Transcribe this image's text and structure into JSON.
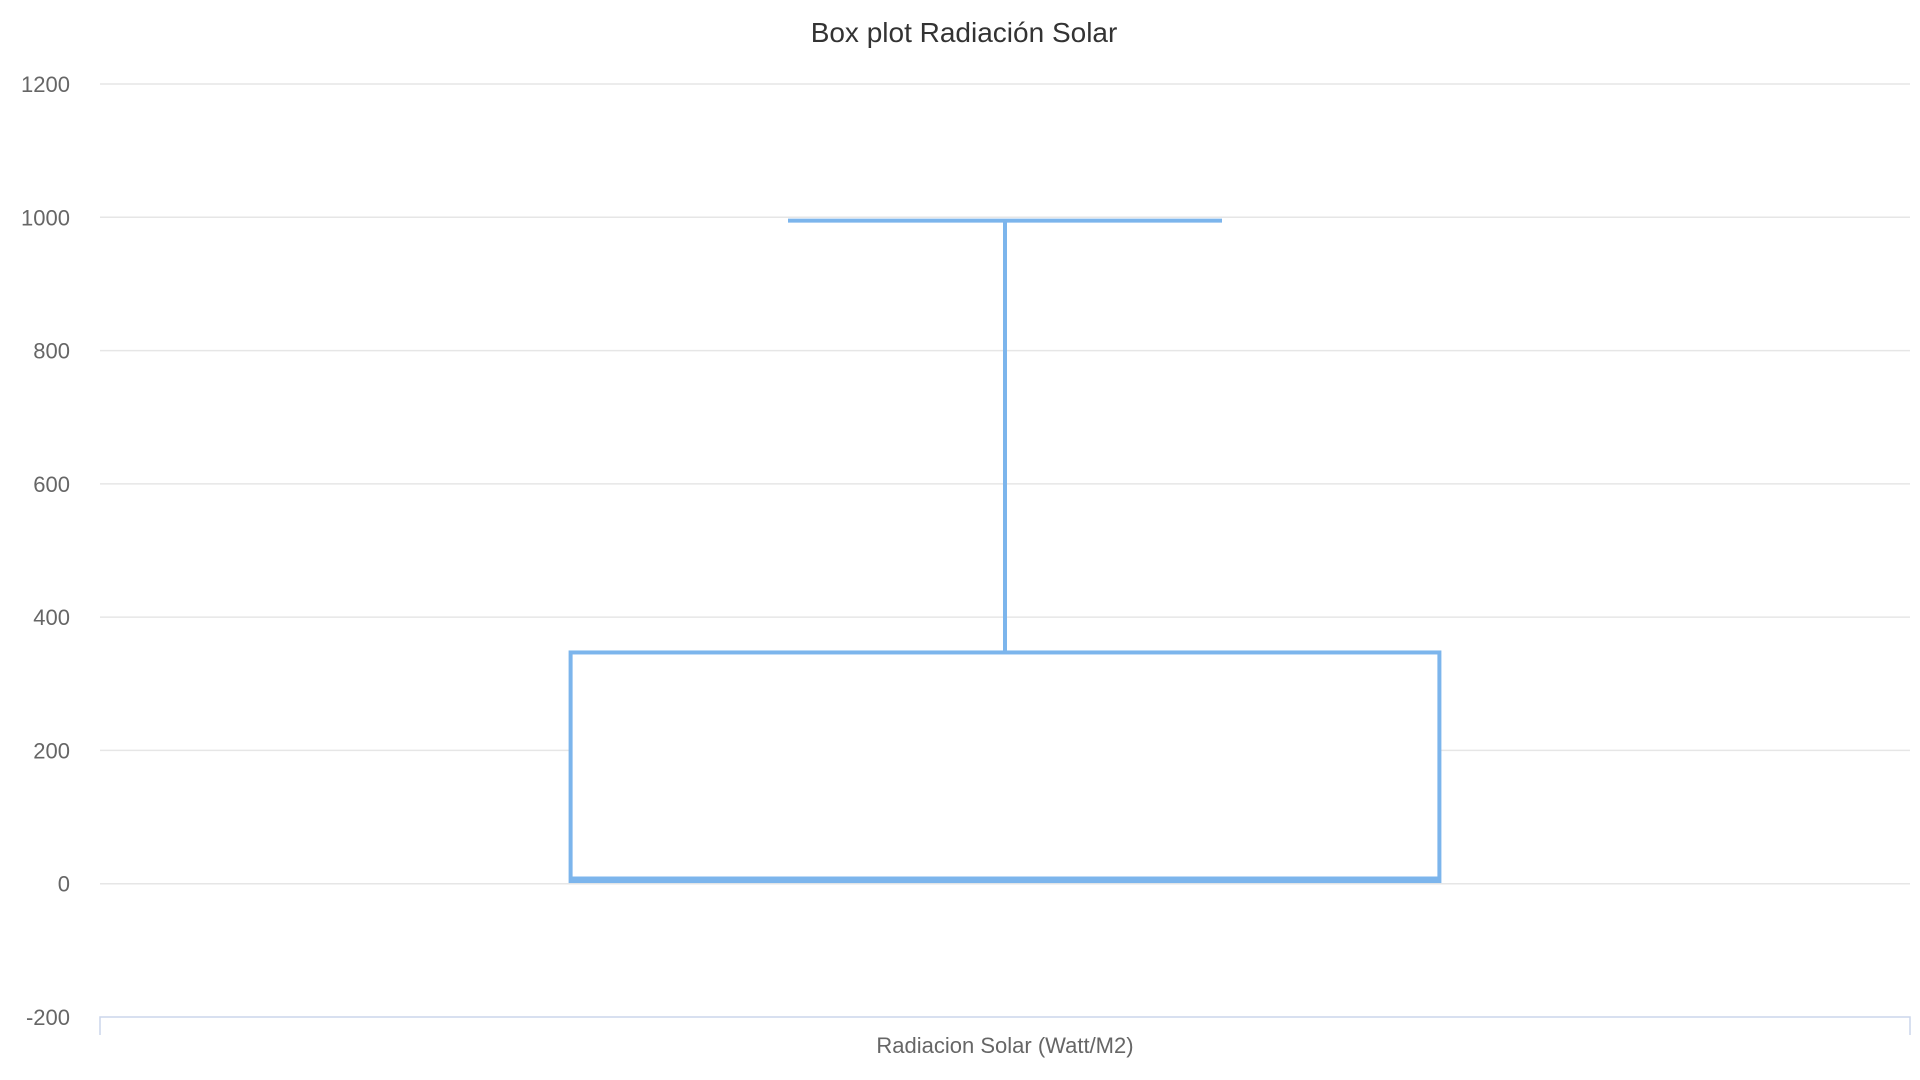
{
  "chart_data": {
    "type": "boxplot",
    "title": "Box plot Radiación Solar",
    "categories": [
      "Radiacion Solar (Watt/M2)"
    ],
    "ylim": [
      -200,
      1200
    ],
    "yticks": [
      -200,
      0,
      200,
      400,
      600,
      800,
      1000,
      1200
    ],
    "grid": true,
    "series": [
      {
        "values": [
          {
            "low": 4,
            "q1": 4,
            "median": 7,
            "q3": 347,
            "high": 995
          }
        ]
      }
    ],
    "color": "#7cb5ec"
  }
}
